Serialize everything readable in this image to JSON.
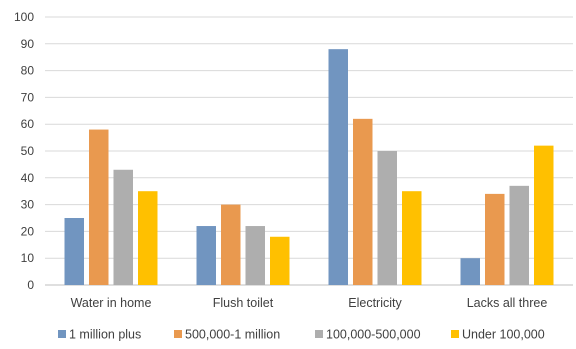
{
  "chart_data": {
    "type": "bar",
    "categories": [
      "Water in home",
      "Flush toilet",
      "Electricity",
      "Lacks all three"
    ],
    "series": [
      {
        "name": "1 million plus",
        "color": "#7195c0",
        "values": [
          25,
          22,
          88,
          10
        ]
      },
      {
        "name": "500,000-1 million",
        "color": "#e9994f",
        "values": [
          58,
          30,
          62,
          34
        ]
      },
      {
        "name": "100,000-500,000",
        "color": "#aeaeae",
        "values": [
          43,
          22,
          50,
          37
        ]
      },
      {
        "name": "Under 100,000",
        "color": "#ffc000",
        "values": [
          35,
          18,
          35,
          52
        ]
      }
    ],
    "ylim": [
      0,
      100
    ],
    "yticks": [
      0,
      10,
      20,
      30,
      40,
      50,
      60,
      70,
      80,
      90,
      100
    ],
    "grid": true,
    "legend_position": "bottom",
    "title": "",
    "xlabel": "",
    "ylabel": ""
  }
}
